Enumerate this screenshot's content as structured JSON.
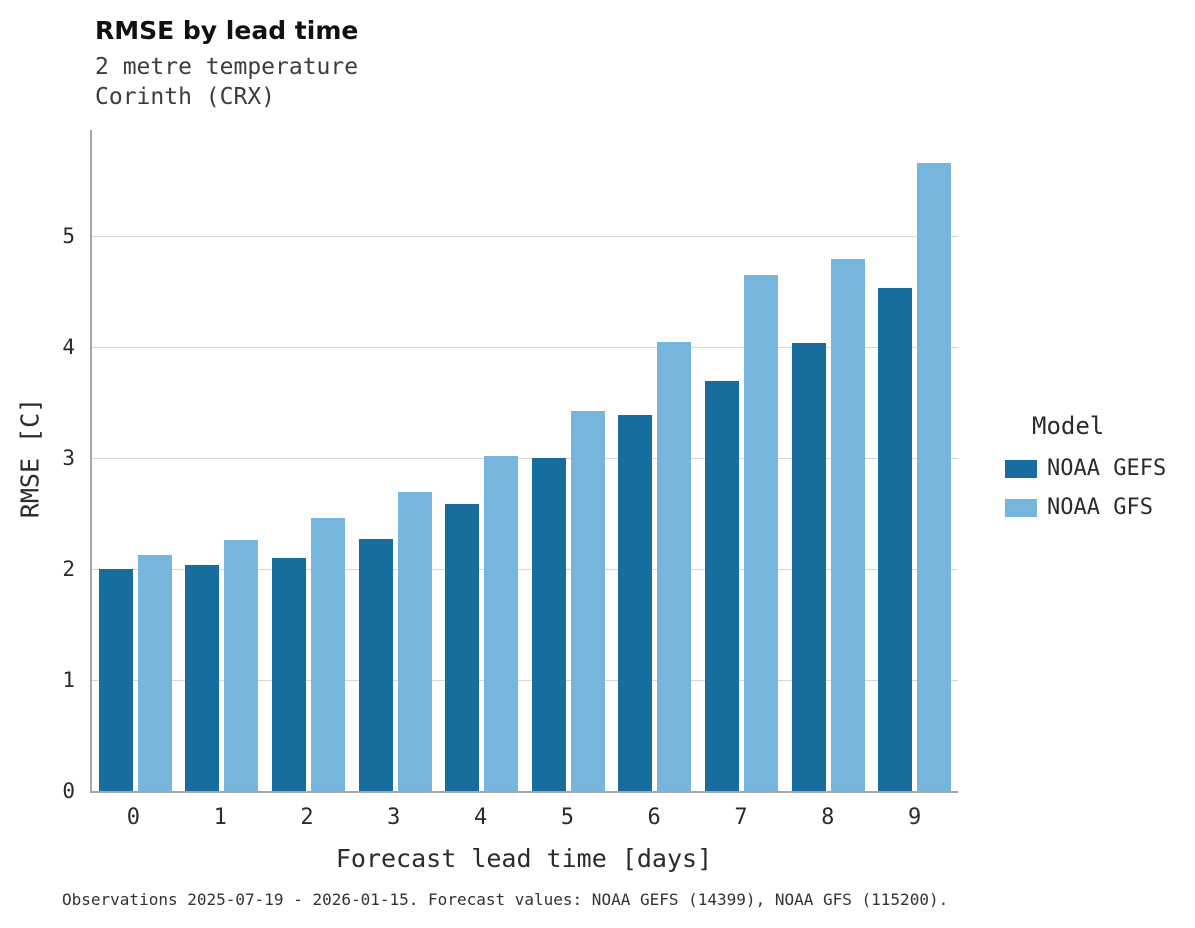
{
  "title": "RMSE by lead time",
  "subtitle_line1": "2 metre temperature",
  "subtitle_line2": "Corinth (CRX)",
  "caption": "Observations 2025-07-19 - 2026-01-15. Forecast values: NOAA GEFS (14399), NOAA GFS (115200).",
  "legend": {
    "title": "Model",
    "entries": [
      {
        "label": "NOAA GEFS",
        "color": "#176d9e"
      },
      {
        "label": "NOAA GFS",
        "color": "#76b5dc"
      }
    ]
  },
  "chart_data": {
    "type": "bar",
    "title": "RMSE by lead time",
    "subtitle": "2 metre temperature Corinth (CRX)",
    "xlabel": "Forecast lead time [days]",
    "ylabel": "RMSE [C]",
    "categories": [
      "0",
      "1",
      "2",
      "3",
      "4",
      "5",
      "6",
      "7",
      "8",
      "9"
    ],
    "series": [
      {
        "name": "NOAA GEFS",
        "color": "#176d9e",
        "values": [
          2.0,
          2.04,
          2.1,
          2.27,
          2.59,
          3.0,
          3.39,
          3.7,
          4.04,
          4.54
        ]
      },
      {
        "name": "NOAA GFS",
        "color": "#76b5dc",
        "values": [
          2.13,
          2.26,
          2.46,
          2.7,
          3.02,
          3.43,
          4.05,
          4.65,
          4.8,
          5.66
        ]
      }
    ],
    "ylim": [
      0,
      5.96
    ],
    "yticks": [
      0,
      1,
      2,
      3,
      4,
      5
    ],
    "grid": true,
    "legend_position": "right"
  }
}
